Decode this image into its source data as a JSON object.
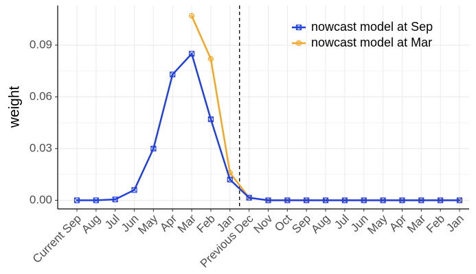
{
  "chart_data": {
    "type": "line",
    "y_label": "weight",
    "categories": [
      "Current Sep",
      "Aug",
      "Jul",
      "Jun",
      "May",
      "Apr",
      "Mar",
      "Feb",
      "Jan",
      "Previous Dec",
      "Nov",
      "Oct",
      "Sep",
      "Aug",
      "Jul",
      "Jun",
      "May",
      "Apr",
      "Mar",
      "Feb",
      "Jan"
    ],
    "series": [
      {
        "name": "nowcast model at Sep",
        "color": "#1f3fe0",
        "marker": "square",
        "values": [
          0,
          0,
          0.0005,
          0.006,
          0.03,
          0.073,
          0.085,
          0.047,
          0.012,
          0.0015,
          0,
          0,
          0,
          0,
          0,
          0,
          0,
          0,
          0,
          0,
          0
        ]
      },
      {
        "name": "nowcast model at Mar",
        "color": "#f5a623",
        "marker": "circle",
        "values": [
          null,
          null,
          null,
          null,
          null,
          null,
          0.107,
          0.082,
          0.016,
          0.0015,
          0,
          0,
          0,
          0,
          0,
          0,
          0,
          0,
          0,
          0,
          0
        ]
      }
    ],
    "ylim": [
      -0.005,
      0.113
    ],
    "yticks": [
      {
        "value": 0,
        "label": "0.00"
      },
      {
        "value": 0.03,
        "label": "0.03"
      },
      {
        "value": 0.06,
        "label": "0.06"
      },
      {
        "value": 0.09,
        "label": "0.09"
      }
    ],
    "vline_x": 8.5,
    "grid": true,
    "legend": "top-right"
  }
}
